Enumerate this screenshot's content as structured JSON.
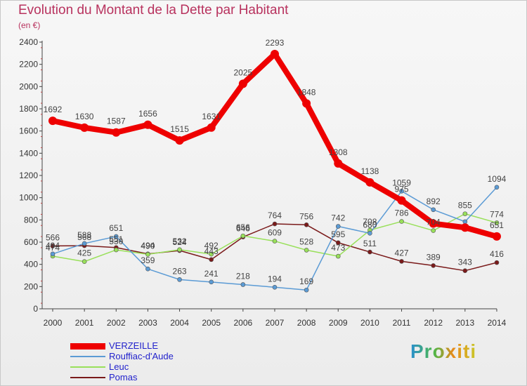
{
  "chart_data": {
    "type": "line",
    "title": "Evolution du Montant de la Dette par Habitant",
    "subtitle": "(en €)",
    "x": [
      "2000",
      "2001",
      "2002",
      "2003",
      "2004",
      "2005",
      "2006",
      "2007",
      "2008",
      "2009",
      "2010",
      "2011",
      "2012",
      "2013",
      "2014"
    ],
    "ylim": [
      0,
      2400
    ],
    "yticks": [
      0,
      200,
      400,
      600,
      800,
      1000,
      1200,
      1400,
      1600,
      1800,
      2000,
      2200,
      2400
    ],
    "grid": false,
    "legend_position": "bottom-left",
    "series": [
      {
        "name": "VERZEILLE",
        "color": "#ee0000",
        "width": 8,
        "point": 6,
        "values": [
          1692,
          1630,
          1587,
          1656,
          1515,
          1631,
          2025,
          2293,
          1848,
          1308,
          1138,
          975,
          767,
          731,
          651
        ],
        "labels": [
          "1692",
          "1630",
          "1587",
          "1656",
          "1515",
          "1631",
          "2025",
          "2293",
          "1848",
          "1308",
          "1138",
          "975",
          "",
          "",
          "651"
        ]
      },
      {
        "name": "Rouffiac-d'Aude",
        "color": "#5b9bd5",
        "width": 1.5,
        "point": 3,
        "values": [
          494,
          588,
          651,
          359,
          263,
          241,
          218,
          194,
          169,
          742,
          680,
          1059,
          892,
          784,
          1094
        ],
        "labels": [
          "494",
          "588",
          "651",
          "359",
          "263",
          "241",
          "218",
          "194",
          "169",
          "742",
          "680",
          "1059",
          "892",
          "",
          "1094"
        ]
      },
      {
        "name": "Leuc",
        "color": "#99e05a",
        "width": 1.5,
        "point": 3,
        "values": [
          474,
          425,
          530,
          490,
          532,
          492,
          656,
          609,
          528,
          473,
          708,
          786,
          704,
          855,
          774
        ],
        "labels": [
          "474",
          "425",
          "530",
          "490",
          "532",
          "492",
          "656",
          "609",
          "528",
          "473",
          "708",
          "786",
          "704",
          "855",
          "774"
        ]
      },
      {
        "name": "Pomas",
        "color": "#7a1a1a",
        "width": 1.5,
        "point": 3,
        "values": [
          566,
          568,
          551,
          494,
          524,
          443,
          646,
          764,
          756,
          595,
          511,
          427,
          389,
          343,
          416
        ],
        "labels": [
          "566",
          "568",
          "551",
          "494",
          "524",
          "443",
          "646",
          "764",
          "756",
          "595",
          "511",
          "427",
          "389",
          "343",
          "416"
        ]
      }
    ]
  },
  "logo": {
    "text": "Proxiti"
  }
}
